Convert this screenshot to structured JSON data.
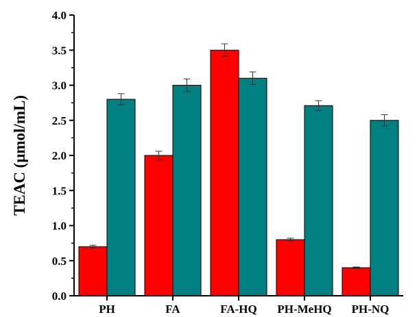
{
  "chart_data": {
    "type": "bar",
    "title": "",
    "xlabel": "",
    "ylabel": "TEAC (μmol/mL)",
    "ylim": [
      0,
      4
    ],
    "yticks": [
      "0.0",
      "0.5",
      "1.0",
      "1.5",
      "2.0",
      "2.5",
      "3.0",
      "3.5",
      "4.0"
    ],
    "categories": [
      "PH",
      "FA",
      "FA-HQ",
      "PH-MeHQ",
      "PH-NQ"
    ],
    "series": [
      {
        "color": "#ff0000",
        "values": [
          0.7,
          2.0,
          3.5,
          0.8,
          0.4
        ],
        "errors": [
          0.02,
          0.06,
          0.09,
          0.02,
          0.01
        ]
      },
      {
        "color": "#008080",
        "values": [
          2.8,
          3.0,
          3.1,
          2.71,
          2.5
        ],
        "errors": [
          0.08,
          0.09,
          0.09,
          0.07,
          0.08
        ]
      }
    ],
    "grid": false,
    "legend": "none"
  }
}
